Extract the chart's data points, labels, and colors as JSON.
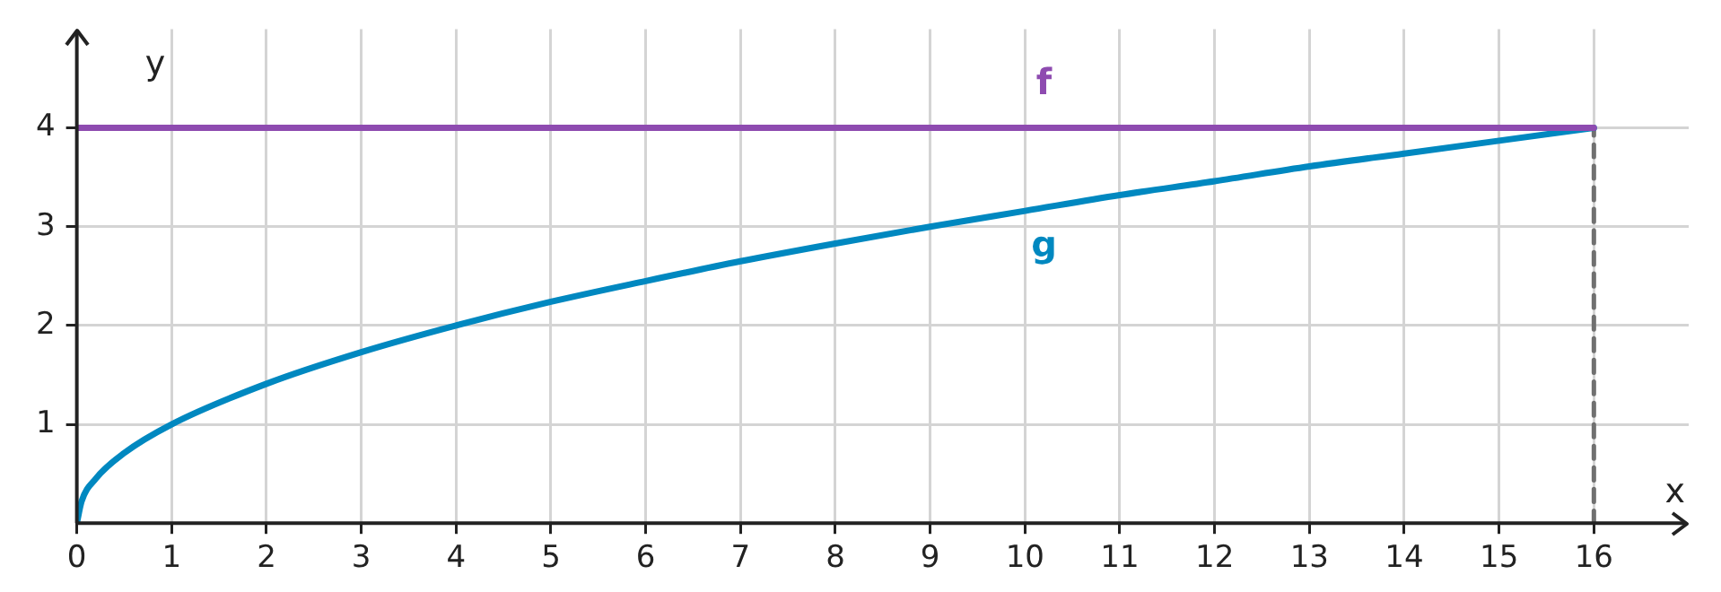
{
  "chart_data": {
    "type": "line",
    "xlabel": "x",
    "ylabel": "y",
    "xlim": [
      0,
      17
    ],
    "ylim": [
      0,
      5
    ],
    "xticks": [
      0,
      1,
      2,
      3,
      4,
      5,
      6,
      7,
      8,
      9,
      10,
      11,
      12,
      13,
      14,
      15,
      16
    ],
    "yticks": [
      1,
      2,
      3,
      4
    ],
    "grid": true,
    "legend": false,
    "marker": "none",
    "series": [
      {
        "name": "f",
        "color": "#8e4bb0",
        "x": [
          0,
          16
        ],
        "values": [
          4,
          4
        ]
      },
      {
        "name": "g",
        "color": "#0088c0",
        "x": [
          0,
          0.05,
          0.2,
          0.5,
          1,
          2,
          3,
          4,
          5,
          6,
          7,
          8,
          9,
          10,
          11,
          12,
          13,
          14,
          15,
          16
        ],
        "values": [
          0,
          0.22,
          0.45,
          0.71,
          1,
          1.41,
          1.73,
          2,
          2.24,
          2.45,
          2.65,
          2.83,
          3,
          3.16,
          3.32,
          3.46,
          3.61,
          3.74,
          3.87,
          4
        ]
      },
      {
        "color": "#707070",
        "x": [
          16,
          16
        ],
        "values": [
          0,
          4
        ],
        "line_style": "dashed"
      }
    ]
  }
}
